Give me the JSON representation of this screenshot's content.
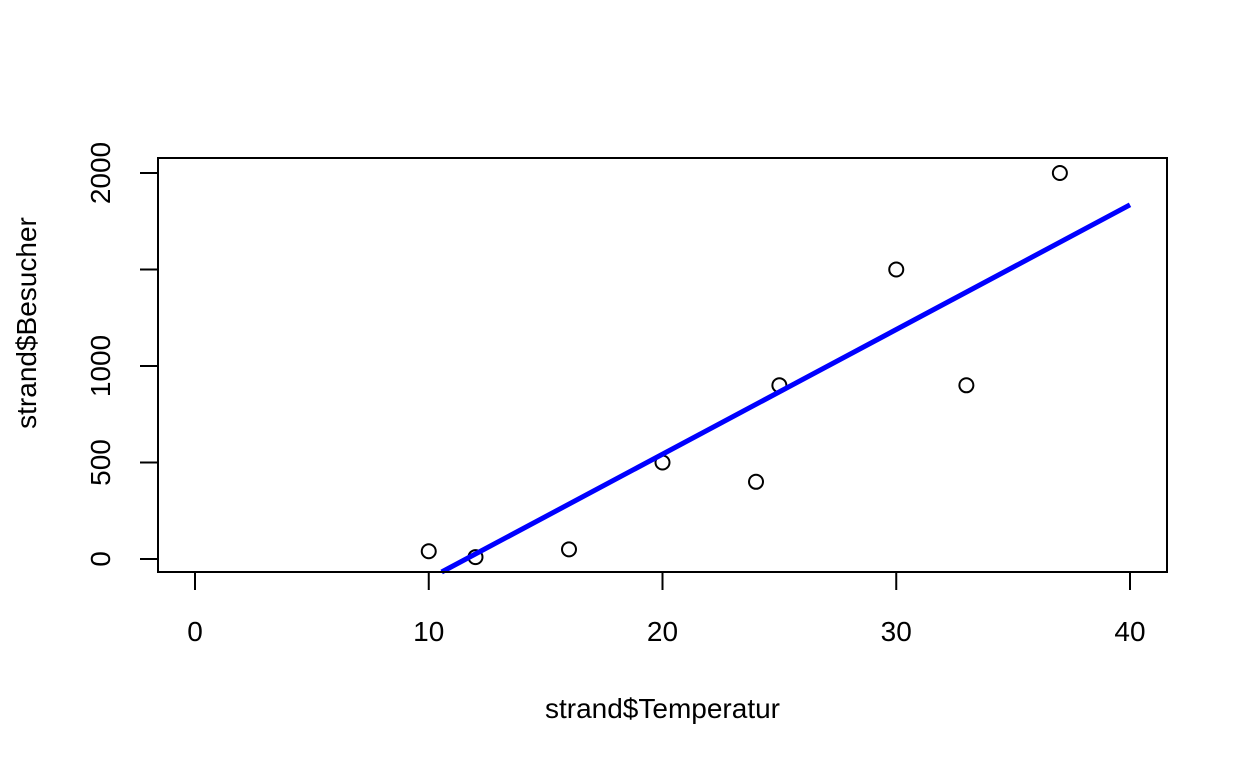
{
  "chart_data": {
    "type": "scatter",
    "title": "",
    "xlabel": "strand$Temperatur",
    "ylabel": "strand$Besucher",
    "xlim": [
      0,
      40
    ],
    "ylim": [
      0,
      2000
    ],
    "x_ticks": [
      0,
      10,
      20,
      30,
      40
    ],
    "y_ticks": [
      0,
      500,
      1000,
      1500,
      2000
    ],
    "y_tick_labels": [
      "0",
      "500",
      "1000",
      "",
      "2000"
    ],
    "grid": false,
    "legend": "none",
    "points": [
      {
        "x": 10,
        "y": 40
      },
      {
        "x": 12,
        "y": 10
      },
      {
        "x": 16,
        "y": 50
      },
      {
        "x": 20,
        "y": 500
      },
      {
        "x": 24,
        "y": 400
      },
      {
        "x": 25,
        "y": 900
      },
      {
        "x": 30,
        "y": 1500
      },
      {
        "x": 33,
        "y": 900
      },
      {
        "x": 37,
        "y": 2000
      }
    ],
    "regression_line": {
      "color": "#0000ff",
      "intercept": -749,
      "slope": 64.6
    },
    "point_color": "#000000"
  }
}
